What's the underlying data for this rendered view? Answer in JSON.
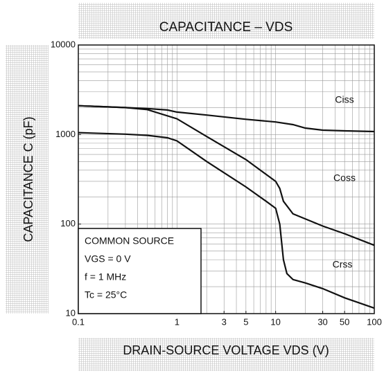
{
  "chart_data": {
    "type": "line",
    "title": "CAPACITANCE – VDS",
    "xlabel": "DRAIN-SOURCE VOLTAGE   VDS   (V)",
    "ylabel": "CAPACITANCE   C   (pF)",
    "xscale": "log",
    "yscale": "log",
    "grid": true,
    "xlim": [
      0.1,
      100
    ],
    "xticks": [
      0.1,
      1,
      3,
      5,
      10,
      30,
      50,
      100
    ],
    "ylim": [
      10,
      10000
    ],
    "yticks": [
      10,
      100,
      1000,
      10000
    ],
    "series": [
      {
        "name": "Ciss",
        "color": "#111111",
        "x": [
          0.1,
          0.3,
          0.5,
          0.8,
          1,
          2,
          5,
          10,
          15,
          20,
          30,
          50,
          100
        ],
        "values": [
          2100,
          2000,
          1950,
          1880,
          1780,
          1650,
          1480,
          1380,
          1290,
          1180,
          1120,
          1100,
          1080
        ]
      },
      {
        "name": "Coss",
        "color": "#111111",
        "x": [
          0.1,
          0.3,
          0.5,
          1,
          2,
          5,
          10,
          11,
          12,
          15,
          30,
          50,
          100
        ],
        "values": [
          2100,
          2000,
          1900,
          1500,
          950,
          525,
          300,
          250,
          180,
          130,
          95,
          78,
          58
        ]
      },
      {
        "name": "Crss",
        "color": "#111111",
        "x": [
          0.1,
          0.3,
          0.5,
          0.8,
          1,
          2,
          5,
          8,
          10,
          11,
          12,
          13,
          15,
          20,
          30,
          50,
          100
        ],
        "values": [
          1050,
          1010,
          980,
          920,
          850,
          500,
          260,
          180,
          150,
          100,
          40,
          28,
          24,
          22,
          19,
          15,
          11.5
        ]
      }
    ],
    "annotation": [
      "COMMON SOURCE",
      "VGS = 0 V",
      "f = 1 MHz",
      "Tc = 25°C"
    ]
  }
}
